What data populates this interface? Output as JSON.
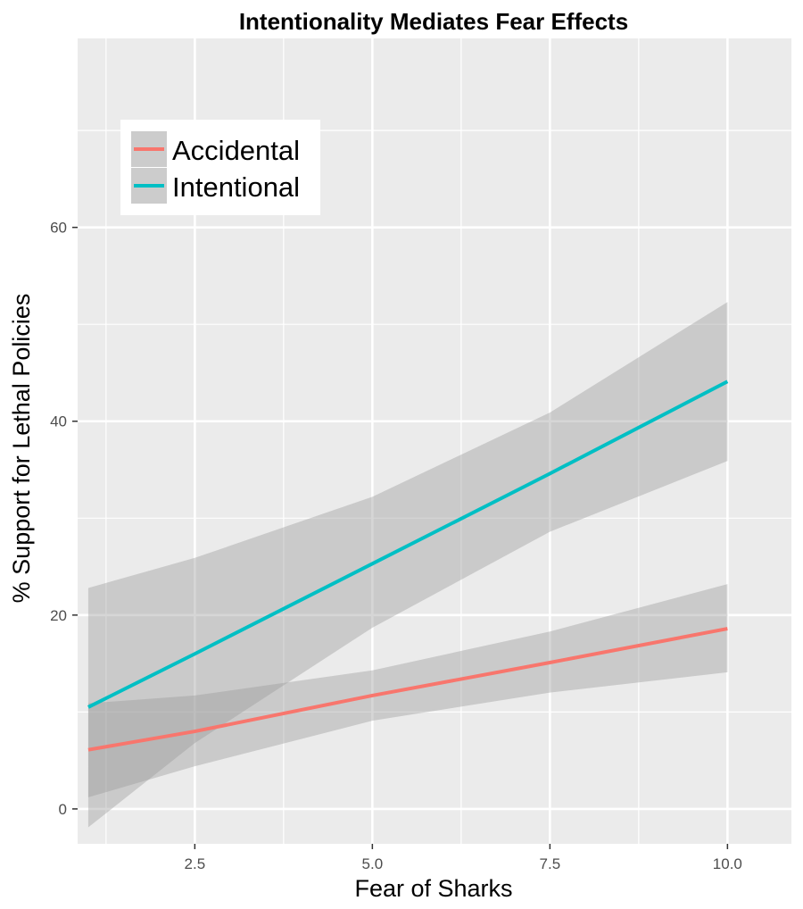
{
  "chart_data": {
    "type": "line",
    "title": "Intentionality Mediates Fear Effects",
    "xlabel": "Fear of Sharks",
    "ylabel": "% Support for Lethal Policies",
    "xlim": [
      0.85,
      10.9
    ],
    "ylim": [
      -3.6,
      79.5
    ],
    "x_ticks": [
      2.5,
      5.0,
      7.5,
      10.0
    ],
    "x_tick_labels": [
      "2.5",
      "5.0",
      "7.5",
      "10.0"
    ],
    "y_ticks": [
      0,
      20,
      40,
      60
    ],
    "y_tick_labels": [
      "0",
      "20",
      "40",
      "60"
    ],
    "x_minor": [
      1.25,
      3.75,
      6.25,
      8.75
    ],
    "y_minor": [
      10,
      30,
      50,
      70
    ],
    "grid": true,
    "legend_position": "top-left",
    "series": [
      {
        "name": "Accidental",
        "color": "#F8766D",
        "x": [
          1,
          2.5,
          5,
          7.5,
          10
        ],
        "y": [
          6.1,
          8.0,
          11.7,
          15.1,
          18.6
        ],
        "ci_lower": [
          1.2,
          4.4,
          9.1,
          12.0,
          14.1
        ],
        "ci_upper": [
          10.9,
          11.7,
          14.3,
          18.3,
          23.2
        ]
      },
      {
        "name": "Intentional",
        "color": "#00BFC4",
        "x": [
          1,
          2.5,
          5,
          7.5,
          10
        ],
        "y": [
          10.5,
          16.0,
          25.3,
          34.6,
          44.1
        ],
        "ci_lower": [
          -1.9,
          6.8,
          18.7,
          28.6,
          35.9
        ],
        "ci_upper": [
          22.8,
          25.9,
          32.2,
          40.9,
          52.3
        ]
      }
    ]
  }
}
